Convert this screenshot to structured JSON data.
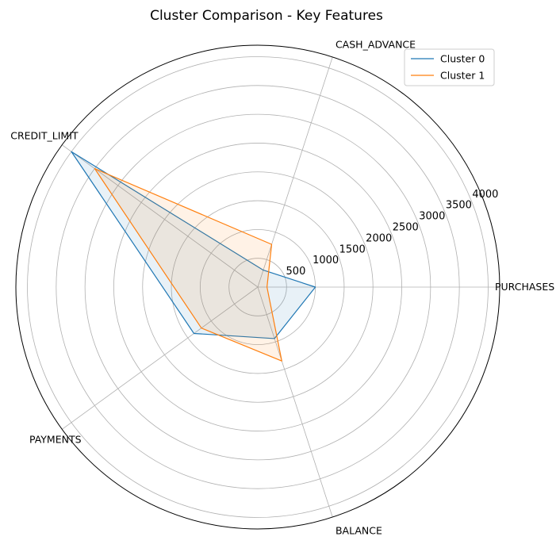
{
  "chart_data": {
    "type": "radar",
    "title": "Cluster Comparison - Key Features",
    "axes": [
      "PURCHASES",
      "CASH_ADVANCE",
      "CREDIT_LIMIT",
      "PAYMENTS",
      "BALANCE"
    ],
    "radial_ticks": [
      500,
      1000,
      1500,
      2000,
      2500,
      3000,
      3500,
      4000
    ],
    "rlim": [
      0,
      4200
    ],
    "grid": true,
    "legend_position": "top-right",
    "series": [
      {
        "name": "Cluster 0",
        "color": "#1f77b4",
        "values": [
          1000,
          310,
          4000,
          1370,
          940
        ]
      },
      {
        "name": "Cluster 1",
        "color": "#ff7f0e",
        "values": [
          160,
          780,
          3500,
          1210,
          1350
        ]
      }
    ]
  }
}
